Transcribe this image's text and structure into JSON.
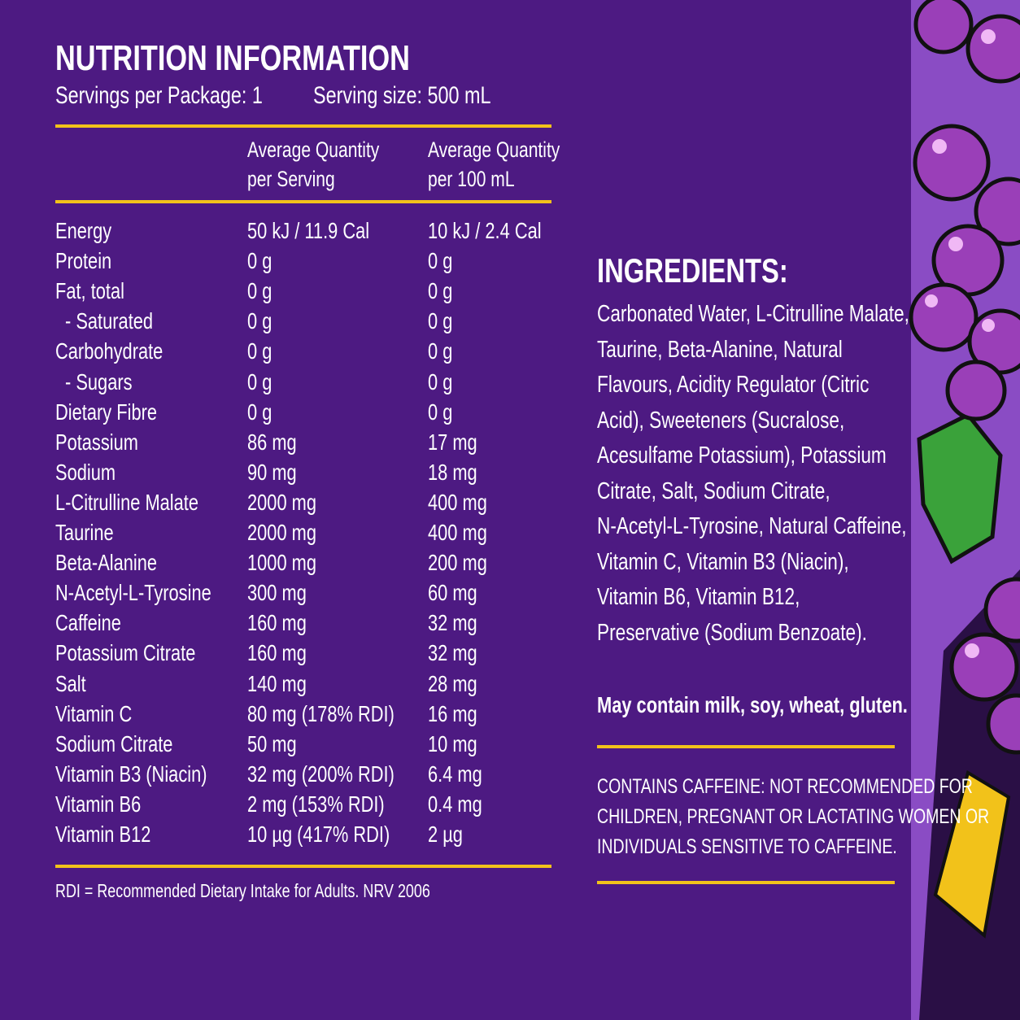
{
  "nutrition": {
    "title": "NUTRITION INFORMATION",
    "servings": "Servings per Package: 1",
    "serving_size": "Serving size: 500 mL",
    "headers": [
      [
        "Average Quantity",
        "per Serving"
      ],
      [
        "Average Quantity",
        "per 100 mL"
      ]
    ],
    "rows": [
      [
        "Energy",
        "50 kJ / 11.9 Cal",
        "10 kJ / 2.4 Cal"
      ],
      [
        "Protein",
        "0 g",
        "0 g"
      ],
      [
        "Fat, total",
        "0 g",
        "0 g"
      ],
      [
        "- Saturated",
        "0 g",
        "0 g"
      ],
      [
        "Carbohydrate",
        "0 g",
        "0 g"
      ],
      [
        "- Sugars",
        "0 g",
        "0 g"
      ],
      [
        "Dietary Fibre",
        "0 g",
        "0 g"
      ],
      [
        "Potassium",
        "86 mg",
        "17 mg"
      ],
      [
        "Sodium",
        "90 mg",
        "18 mg"
      ],
      [
        "L-Citrulline Malate",
        "2000 mg",
        "400 mg"
      ],
      [
        "Taurine",
        "2000 mg",
        "400 mg"
      ],
      [
        "Beta-Alanine",
        "1000 mg",
        "200 mg"
      ],
      [
        "N-Acetyl-L-Tyrosine",
        "300 mg",
        "60 mg"
      ],
      [
        "Caffeine",
        "160 mg",
        "32 mg"
      ],
      [
        "Potassium Citrate",
        "160 mg",
        "32 mg"
      ],
      [
        "Salt",
        "140 mg",
        "28 mg"
      ],
      [
        "Vitamin C",
        "80 mg (178% RDI)",
        "16 mg"
      ],
      [
        "Sodium Citrate",
        "50 mg",
        "10 mg"
      ],
      [
        "Vitamin B3 (Niacin)",
        "32 mg (200% RDI)",
        "6.4 mg"
      ],
      [
        "Vitamin B6",
        "2 mg (153% RDI)",
        "0.4 mg"
      ],
      [
        "Vitamin B12",
        "10 µg (417% RDI)",
        "2 µg"
      ]
    ],
    "footnote": "RDI = Recommended Dietary Intake for Adults. NRV 2006"
  },
  "ingredients": {
    "title": "INGREDIENTS:",
    "lines": [
      "Carbonated Water, L-Citrulline Malate,",
      "Taurine, Beta-Alanine, Natural",
      "Flavours, Acidity Regulator (Citric",
      "Acid), Sweeteners (Sucralose,",
      "Acesulfame Potassium), Potassium",
      "Citrate, Salt, Sodium Citrate,",
      "N-Acetyl-L-Tyrosine, Natural Caffeine,",
      "Vitamin C, Vitamin B3 (Niacin),",
      "Vitamin B6, Vitamin B12,",
      "Preservative (Sodium Benzoate)."
    ],
    "allergens": "May contain milk, soy, wheat, gluten.",
    "warning": [
      "CONTAINS CAFFEINE: NOT RECOMMENDED FOR",
      "CHILDREN, PREGNANT OR LACTATING WOMEN OR",
      "INDIVIDUALS SENSITIVE TO CAFFEINE."
    ]
  }
}
